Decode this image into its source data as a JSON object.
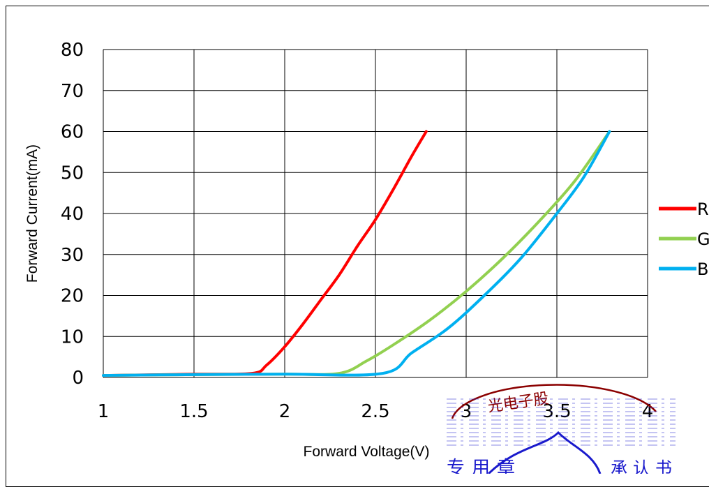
{
  "chart_data": {
    "type": "line",
    "xlabel": "Forward Voltage(V)",
    "ylabel": "Forward Current(mA)",
    "xlim": [
      1,
      4
    ],
    "ylim": [
      0,
      80
    ],
    "x_ticks": [
      "1",
      "1.5",
      "2",
      "2.5",
      "3",
      "3.5",
      "4"
    ],
    "y_ticks": [
      "0",
      "10",
      "20",
      "30",
      "40",
      "50",
      "60",
      "70",
      "80"
    ],
    "grid": true,
    "legend_position": "right",
    "series": [
      {
        "name": "R",
        "color": "#ff0000",
        "points": [
          [
            1.0,
            0.5
          ],
          [
            1.5,
            0.8
          ],
          [
            1.82,
            1.0
          ],
          [
            1.9,
            3.0
          ],
          [
            2.0,
            7.5
          ],
          [
            2.1,
            13
          ],
          [
            2.2,
            19
          ],
          [
            2.3,
            25
          ],
          [
            2.4,
            32
          ],
          [
            2.5,
            38.5
          ],
          [
            2.6,
            46
          ],
          [
            2.7,
            54
          ],
          [
            2.78,
            60
          ]
        ]
      },
      {
        "name": "G",
        "color": "#92d050",
        "points": [
          [
            1.0,
            0.5
          ],
          [
            1.5,
            0.7
          ],
          [
            2.0,
            0.8
          ],
          [
            2.3,
            1.0
          ],
          [
            2.45,
            4.0
          ],
          [
            2.6,
            8.0
          ],
          [
            2.8,
            14.0
          ],
          [
            3.0,
            21.0
          ],
          [
            3.2,
            29.0
          ],
          [
            3.4,
            38.0
          ],
          [
            3.6,
            48.0
          ],
          [
            3.79,
            60.0
          ]
        ]
      },
      {
        "name": "B",
        "color": "#00b0f0",
        "points": [
          [
            1.0,
            0.5
          ],
          [
            1.5,
            0.7
          ],
          [
            2.0,
            0.8
          ],
          [
            2.54,
            1.0
          ],
          [
            2.7,
            6.0
          ],
          [
            2.9,
            12.0
          ],
          [
            3.1,
            20.0
          ],
          [
            3.3,
            29.0
          ],
          [
            3.5,
            40.0
          ],
          [
            3.65,
            49.0
          ],
          [
            3.79,
            60.0
          ]
        ]
      }
    ]
  },
  "stamp": {
    "text_top": "光电子股",
    "text_bottom": "专用章",
    "text_side": "承认书"
  },
  "colors": {
    "stamp_red": "#c00000",
    "stamp_blue": "#2a2ad0"
  }
}
